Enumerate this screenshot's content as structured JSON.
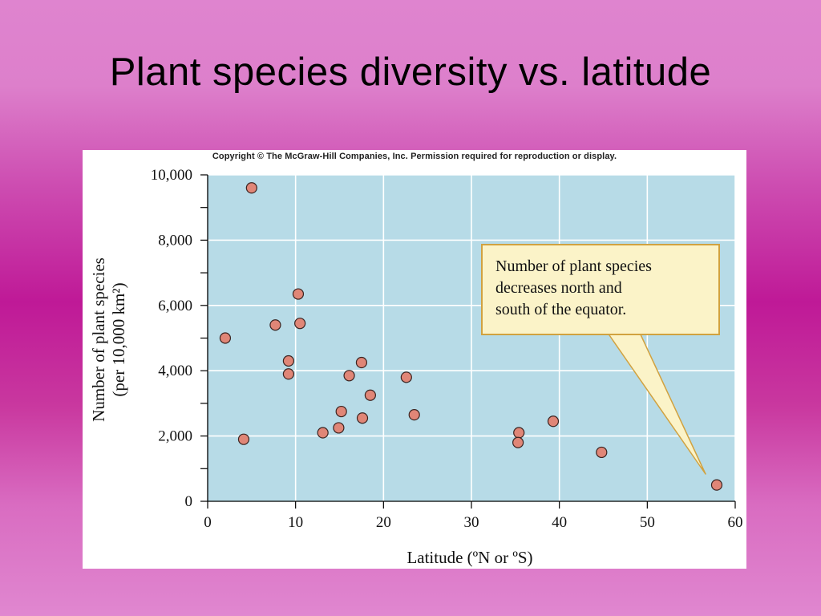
{
  "slide": {
    "title": "Plant species diversity vs. latitude"
  },
  "figure": {
    "copyright": "Copyright © The McGraw-Hill Companies, Inc. Permission required for reproduction or display.",
    "callout_lines": [
      "Number of plant species",
      "decreases north and",
      "south of the equator."
    ]
  },
  "colors": {
    "plot_bg": "#b7dbe7",
    "marker_fill": "#e08677",
    "callout_bg": "#fbf3c8",
    "callout_border": "#d1a240"
  },
  "chart_data": {
    "type": "scatter",
    "xlabel": "Latitude (ºN or ºS)",
    "ylabel_line1": "Number of plant species",
    "ylabel_line2": "(per 10,000 km²)",
    "xlim": [
      0,
      60
    ],
    "ylim": [
      0,
      10000
    ],
    "x_ticks": [
      0,
      10,
      20,
      30,
      40,
      50,
      60
    ],
    "x_tick_labels": [
      "0",
      "10",
      "20",
      "30",
      "40",
      "50",
      "60"
    ],
    "y_ticks": [
      0,
      2000,
      4000,
      6000,
      8000,
      10000
    ],
    "y_tick_labels": [
      "0",
      "2,000",
      "4,000",
      "6,000",
      "8,000",
      "10,000"
    ],
    "y_minor_step": 1000,
    "grid": true,
    "points": [
      {
        "x": 5.0,
        "y": 9600
      },
      {
        "x": 2.0,
        "y": 5000
      },
      {
        "x": 4.1,
        "y": 1900
      },
      {
        "x": 7.7,
        "y": 5400
      },
      {
        "x": 10.3,
        "y": 6350
      },
      {
        "x": 10.5,
        "y": 5450
      },
      {
        "x": 9.2,
        "y": 4300
      },
      {
        "x": 9.2,
        "y": 3900
      },
      {
        "x": 13.1,
        "y": 2100
      },
      {
        "x": 14.9,
        "y": 2250
      },
      {
        "x": 15.2,
        "y": 2750
      },
      {
        "x": 16.1,
        "y": 3850
      },
      {
        "x": 17.5,
        "y": 4250
      },
      {
        "x": 17.6,
        "y": 2550
      },
      {
        "x": 18.5,
        "y": 3250
      },
      {
        "x": 22.6,
        "y": 3800
      },
      {
        "x": 23.5,
        "y": 2650
      },
      {
        "x": 35.4,
        "y": 2100
      },
      {
        "x": 35.3,
        "y": 1800
      },
      {
        "x": 39.3,
        "y": 2450
      },
      {
        "x": 44.8,
        "y": 1500
      },
      {
        "x": 57.9,
        "y": 500
      }
    ]
  }
}
